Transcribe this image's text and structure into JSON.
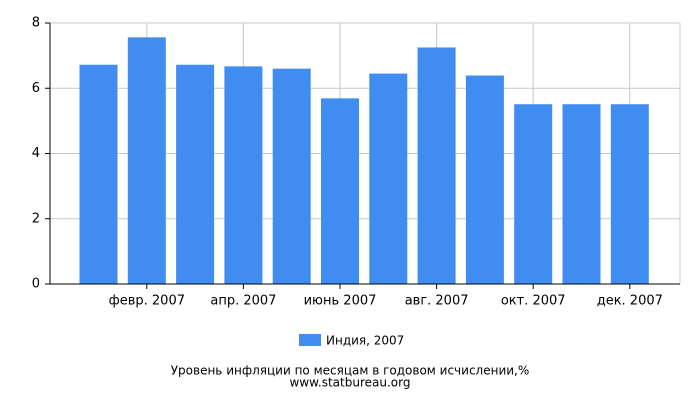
{
  "chart_data": {
    "type": "bar",
    "title": "Уровень инфляции по месяцам в годовом исчислении,%",
    "subtitle": "www.statbureau.org",
    "categories": [
      null,
      "февр. 2007",
      null,
      "апр. 2007",
      null,
      "июнь 2007",
      null,
      "авг. 2007",
      null,
      "окт. 2007",
      null,
      "дек. 2007"
    ],
    "series": [
      {
        "name": "Индия, 2007",
        "color": "#418cf0",
        "values": [
          6.72,
          7.56,
          6.72,
          6.67,
          6.6,
          5.69,
          6.45,
          7.25,
          6.39,
          5.51,
          5.51,
          5.51
        ]
      }
    ],
    "ylim": [
      0,
      8
    ],
    "yticks": [
      0,
      2,
      4,
      6,
      8
    ],
    "grid": true
  }
}
